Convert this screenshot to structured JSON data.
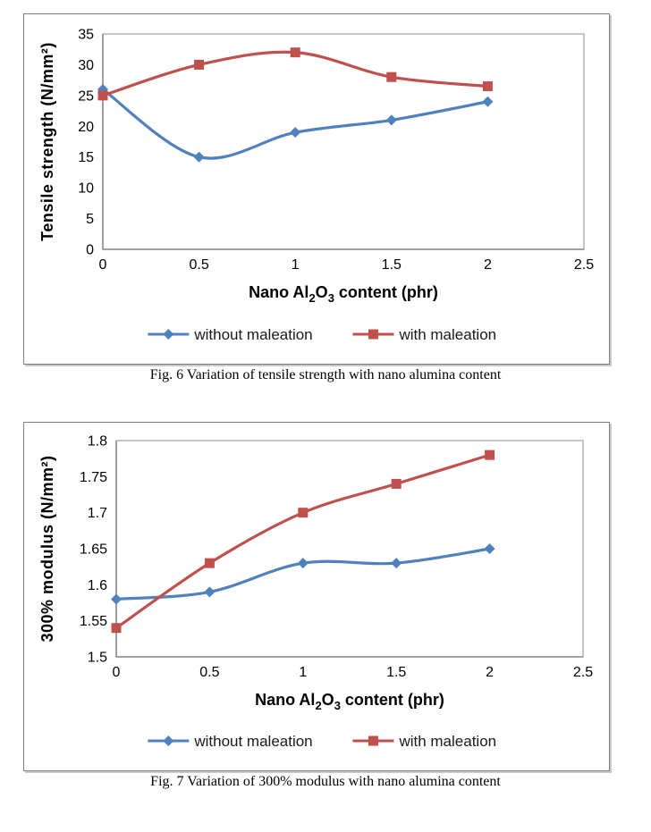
{
  "page": {
    "background": "#ffffff"
  },
  "colors": {
    "series_blue": "#4F81BD",
    "series_red": "#C0504D",
    "axis_line": "#8C8C8C",
    "plot_border": "#A6A6A6",
    "text": "#000000"
  },
  "chart_data": [
    {
      "type": "line",
      "title": "",
      "x": [
        0,
        0.5,
        1,
        1.5,
        2
      ],
      "series": [
        {
          "name": "without maleation",
          "marker": "diamond",
          "color": "#4F81BD",
          "values": [
            26,
            15,
            19,
            21,
            24
          ]
        },
        {
          "name": "with maleation",
          "marker": "square",
          "color": "#C0504D",
          "values": [
            25,
            30,
            32,
            28,
            26.5
          ]
        }
      ],
      "xlabel_parts": [
        "Nano Al",
        {
          "sub": "2"
        },
        "O",
        {
          "sub": "3"
        },
        " content (phr)"
      ],
      "xlabel_plain": "Nano Al2O3 content (phr)",
      "ylabel": "Tensile strength (N/mm²)",
      "xlim": [
        0,
        2.5
      ],
      "ylim": [
        0,
        35
      ],
      "xticks": [
        0,
        0.5,
        1,
        1.5,
        2,
        2.5
      ],
      "xtick_labels": [
        "0",
        "0.5",
        "1",
        "1.5",
        "2",
        "2.5"
      ],
      "yticks": [
        0,
        5,
        10,
        15,
        20,
        25,
        30,
        35
      ],
      "ytick_labels": [
        "0",
        "5",
        "10",
        "15",
        "20",
        "25",
        "30",
        "35"
      ],
      "grid": false,
      "smooth_lines": true,
      "legend_position": "bottom",
      "caption": "Fig. 6 Variation of tensile strength with nano alumina content"
    },
    {
      "type": "line",
      "title": "",
      "x": [
        0,
        0.5,
        1,
        1.5,
        2
      ],
      "series": [
        {
          "name": "without maleation",
          "marker": "diamond",
          "color": "#4F81BD",
          "values": [
            1.58,
            1.59,
            1.63,
            1.63,
            1.65
          ]
        },
        {
          "name": "with maleation",
          "marker": "square",
          "color": "#C0504D",
          "values": [
            1.54,
            1.63,
            1.7,
            1.74,
            1.78
          ]
        }
      ],
      "xlabel_parts": [
        "Nano Al",
        {
          "sub": "2"
        },
        "O",
        {
          "sub": "3"
        },
        " content (phr)"
      ],
      "xlabel_plain": "Nano Al2O3 content (phr)",
      "ylabel": "300% modulus (N/mm²)",
      "xlim": [
        0,
        2.5
      ],
      "ylim": [
        1.5,
        1.8
      ],
      "xticks": [
        0,
        0.5,
        1,
        1.5,
        2,
        2.5
      ],
      "xtick_labels": [
        "0",
        "0.5",
        "1",
        "1.5",
        "2",
        "2.5"
      ],
      "yticks": [
        1.5,
        1.55,
        1.6,
        1.65,
        1.7,
        1.75,
        1.8
      ],
      "ytick_labels": [
        "1.5",
        "1.55",
        "1.6",
        "1.65",
        "1.7",
        "1.75",
        "1.8"
      ],
      "grid": false,
      "smooth_lines": true,
      "legend_position": "bottom",
      "caption": "Fig. 7 Variation of 300% modulus with nano alumina content"
    }
  ]
}
